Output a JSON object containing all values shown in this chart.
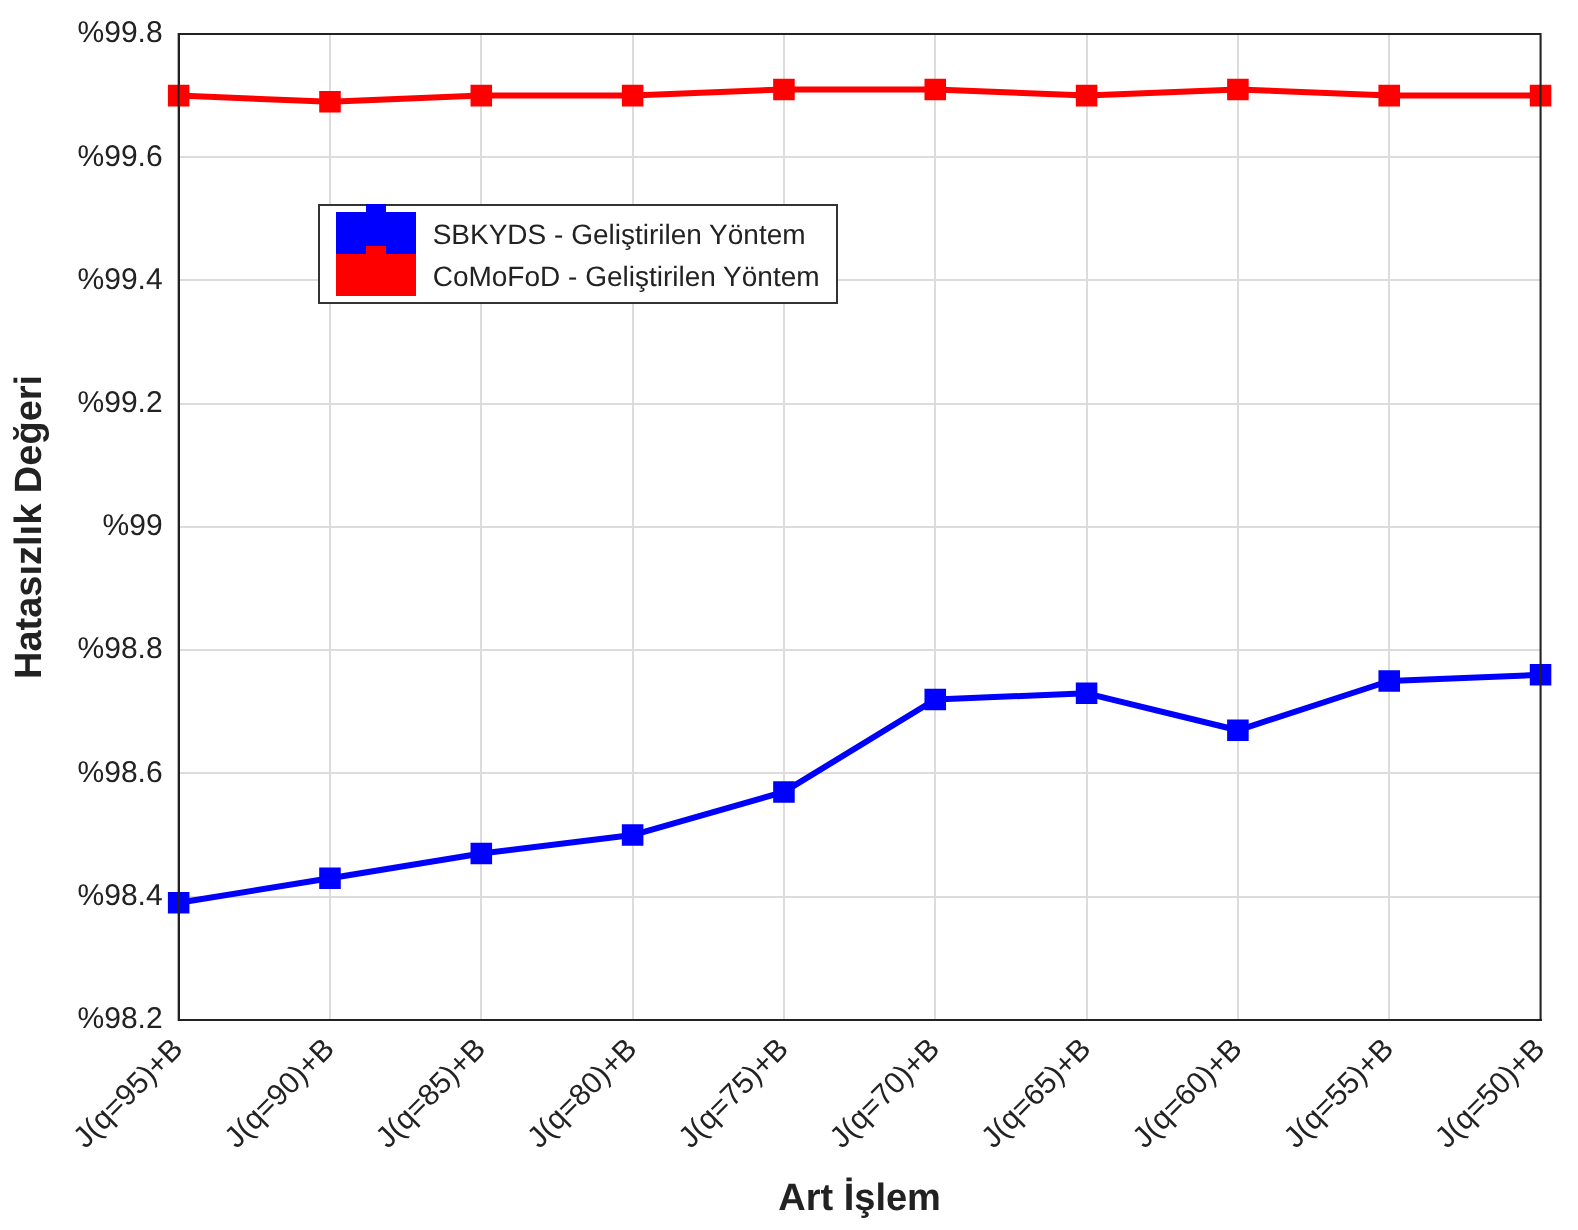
{
  "chart_data": {
    "type": "line",
    "xlabel": "Art İşlem",
    "ylabel": "Hatasızlık Değeri",
    "categories": [
      "J(q=95)+B",
      "J(q=90)+B",
      "J(q=85)+B",
      "J(q=80)+B",
      "J(q=75)+B",
      "J(q=70)+B",
      "J(q=65)+B",
      "J(q=60)+B",
      "J(q=55)+B",
      "J(q=50)+B"
    ],
    "series": [
      {
        "name": "SBKYDS - Geliştirilen Yöntem",
        "color": "#0000ff",
        "values": [
          98.39,
          98.43,
          98.47,
          98.5,
          98.57,
          98.72,
          98.73,
          98.67,
          98.75,
          98.76
        ]
      },
      {
        "name": "CoMoFoD - Geliştirilen Yöntem",
        "color": "#ff0000",
        "values": [
          99.7,
          99.69,
          99.7,
          99.7,
          99.71,
          99.71,
          99.7,
          99.71,
          99.7,
          99.7
        ]
      }
    ],
    "ylim": [
      98.2,
      99.8
    ],
    "yticks": [
      {
        "value": 98.2,
        "label": "%98.2"
      },
      {
        "value": 98.4,
        "label": "%98.4"
      },
      {
        "value": 98.6,
        "label": "%98.6"
      },
      {
        "value": 98.8,
        "label": "%98.8"
      },
      {
        "value": 99,
        "label": "%99"
      },
      {
        "value": 99.2,
        "label": "%99.2"
      },
      {
        "value": 99.4,
        "label": "%99.4"
      },
      {
        "value": 99.6,
        "label": "%99.6"
      },
      {
        "value": 99.8,
        "label": "%99.8"
      }
    ],
    "grid": true,
    "legend": "top left",
    "marker": "square",
    "line_style": "solid"
  }
}
